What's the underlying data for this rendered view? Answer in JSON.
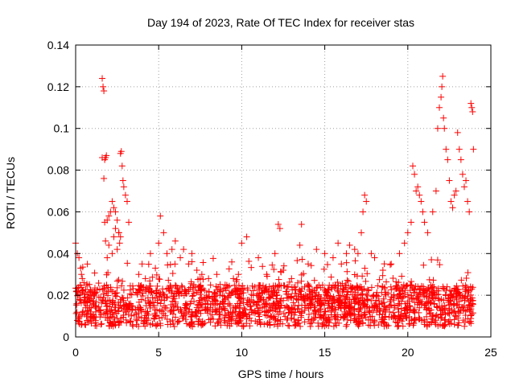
{
  "chart_data": {
    "type": "scatter",
    "title": "Day 194 of 2023, Rate Of TEC Index for receiver stas",
    "xlabel": "GPS time / hours",
    "ylabel": "ROTI / TECUs",
    "xlim": [
      0,
      25
    ],
    "ylim": [
      0,
      0.14
    ],
    "xticks": [
      0,
      5,
      10,
      15,
      20,
      25
    ],
    "xtick_labels": [
      "0",
      "5",
      "10",
      "15",
      "20",
      "25"
    ],
    "yticks": [
      0,
      0.02,
      0.04,
      0.06,
      0.08,
      0.1,
      0.12,
      0.14
    ],
    "ytick_labels": [
      "0",
      "0.02",
      "0.04",
      "0.06",
      "0.08",
      "0.1",
      "0.12",
      "0.14"
    ],
    "grid": true,
    "marker": "+",
    "color": "#ff0000",
    "series": [
      {
        "x": [
          1.6,
          1.65,
          1.7,
          1.6,
          1.75,
          1.8,
          1.85,
          1.7,
          1.75,
          1.9,
          2.0,
          2.1,
          2.2,
          2.3,
          2.4,
          2.5,
          2.6,
          2.7,
          2.75,
          2.8,
          2.85,
          2.9,
          3.0,
          3.1,
          2.65,
          2.7,
          2.6,
          2.5,
          2.2,
          2.0,
          1.9,
          1.8,
          2.4,
          2.3,
          3.2,
          0.0,
          0.1,
          0.2,
          0.3,
          0.35,
          0.4,
          0.5,
          0.05,
          0.15,
          0.25,
          0.6,
          0.9,
          1.2,
          1.5,
          1.8,
          2.1,
          2.4,
          2.7,
          3.0,
          3.3,
          3.6,
          3.9,
          4.2,
          4.5,
          4.8,
          5.1,
          5.4,
          5.7,
          6.0,
          6.3,
          6.6,
          6.9,
          7.2,
          7.5,
          7.8,
          8.1,
          8.4,
          8.7,
          9.0,
          9.3,
          9.6,
          9.9,
          10.2,
          10.5,
          10.8,
          11.1,
          11.4,
          11.7,
          12.0,
          12.3,
          12.6,
          12.9,
          13.2,
          13.5,
          13.8,
          14.1,
          14.4,
          14.7,
          15.0,
          15.3,
          15.6,
          15.9,
          16.2,
          16.5,
          16.8,
          17.1,
          17.4,
          17.7,
          18.0,
          18.3,
          18.6,
          18.9,
          19.2,
          19.5,
          19.8,
          20.1,
          20.4,
          20.7,
          21.0,
          21.3,
          21.6,
          21.9,
          22.2,
          22.5,
          22.8,
          23.1,
          23.4,
          23.7,
          23.9,
          3.8,
          4.0,
          4.2,
          4.5,
          4.8,
          5.0,
          5.1,
          5.3,
          5.5,
          5.8,
          6.0,
          6.3,
          6.5,
          6.8,
          7.0,
          7.3,
          7.6,
          8.0,
          8.5,
          9.0,
          9.5,
          9.8,
          10.0,
          10.3,
          11.0,
          11.5,
          12.0,
          12.2,
          12.3,
          12.5,
          13.0,
          13.5,
          13.6,
          14.0,
          14.5,
          15.0,
          15.5,
          15.8,
          16.0,
          16.3,
          16.5,
          16.8,
          17.0,
          17.2,
          17.3,
          17.4,
          17.5,
          17.8,
          18.0,
          18.5,
          19.0,
          19.5,
          19.8,
          20.0,
          20.2,
          20.3,
          20.4,
          20.5,
          20.6,
          20.7,
          20.8,
          20.9,
          21.0,
          21.2,
          21.5,
          21.7,
          21.8,
          21.9,
          22.0,
          22.05,
          22.1,
          22.15,
          22.2,
          22.3,
          22.4,
          22.5,
          22.6,
          22.7,
          22.8,
          22.9,
          23.0,
          23.1,
          23.2,
          23.3,
          23.4,
          23.5,
          23.6,
          23.7,
          23.8,
          23.85,
          23.9,
          23.95
        ],
        "y": [
          0.124,
          0.12,
          0.118,
          0.086,
          0.085,
          0.086,
          0.087,
          0.076,
          0.055,
          0.056,
          0.058,
          0.06,
          0.065,
          0.062,
          0.06,
          0.056,
          0.05,
          0.088,
          0.089,
          0.082,
          0.075,
          0.072,
          0.068,
          0.065,
          0.045,
          0.048,
          0.05,
          0.042,
          0.04,
          0.044,
          0.038,
          0.046,
          0.052,
          0.048,
          0.055,
          0.045,
          0.04,
          0.038,
          0.033,
          0.03,
          0.028,
          0.026,
          0.022,
          0.02,
          0.018,
          0.014,
          0.012,
          0.015,
          0.013,
          0.016,
          0.011,
          0.014,
          0.015,
          0.012,
          0.016,
          0.013,
          0.014,
          0.012,
          0.015,
          0.013,
          0.016,
          0.014,
          0.012,
          0.015,
          0.013,
          0.014,
          0.016,
          0.012,
          0.015,
          0.013,
          0.014,
          0.012,
          0.016,
          0.013,
          0.015,
          0.012,
          0.014,
          0.013,
          0.015,
          0.012,
          0.014,
          0.016,
          0.013,
          0.015,
          0.012,
          0.014,
          0.013,
          0.015,
          0.012,
          0.014,
          0.016,
          0.013,
          0.015,
          0.012,
          0.014,
          0.013,
          0.015,
          0.012,
          0.014,
          0.016,
          0.013,
          0.015,
          0.012,
          0.014,
          0.013,
          0.015,
          0.012,
          0.014,
          0.016,
          0.013,
          0.015,
          0.012,
          0.014,
          0.015,
          0.013,
          0.016,
          0.014,
          0.015,
          0.013,
          0.016,
          0.014,
          0.015,
          0.013,
          0.016,
          0.03,
          0.035,
          0.028,
          0.04,
          0.033,
          0.045,
          0.058,
          0.05,
          0.04,
          0.042,
          0.046,
          0.038,
          0.042,
          0.035,
          0.04,
          0.032,
          0.03,
          0.028,
          0.03,
          0.025,
          0.028,
          0.03,
          0.045,
          0.048,
          0.038,
          0.03,
          0.04,
          0.054,
          0.052,
          0.032,
          0.028,
          0.044,
          0.054,
          0.035,
          0.042,
          0.04,
          0.038,
          0.045,
          0.035,
          0.04,
          0.044,
          0.042,
          0.04,
          0.05,
          0.06,
          0.068,
          0.065,
          0.04,
          0.038,
          0.032,
          0.035,
          0.04,
          0.045,
          0.05,
          0.055,
          0.082,
          0.078,
          0.07,
          0.072,
          0.068,
          0.065,
          0.06,
          0.055,
          0.05,
          0.06,
          0.07,
          0.1,
          0.11,
          0.115,
          0.12,
          0.125,
          0.105,
          0.1,
          0.09,
          0.085,
          0.075,
          0.065,
          0.062,
          0.068,
          0.07,
          0.098,
          0.09,
          0.085,
          0.078,
          0.072,
          0.075,
          0.065,
          0.06,
          0.112,
          0.11,
          0.108,
          0.09
        ]
      }
    ]
  }
}
